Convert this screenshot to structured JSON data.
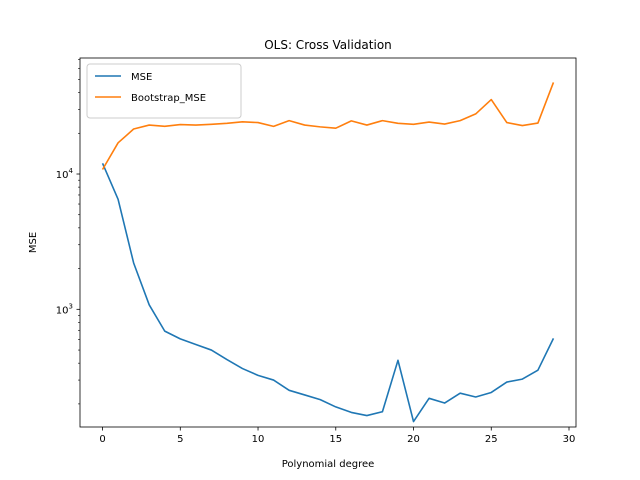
{
  "chart_data": {
    "type": "line",
    "title": "OLS: Cross Validation",
    "xlabel": "Polynomial degree",
    "ylabel": "MSE",
    "xlim": [
      -1.45,
      30.45
    ],
    "ylim": [
      135,
      72000
    ],
    "yscale": "log",
    "grid": false,
    "legend_position": "top-left",
    "x_ticks": [
      0,
      5,
      10,
      15,
      20,
      25,
      30
    ],
    "y_ticks": [
      {
        "value": 1000,
        "base": "10",
        "exp": "3"
      },
      {
        "value": 10000,
        "base": "10",
        "exp": "4"
      }
    ],
    "x": [
      0,
      1,
      2,
      3,
      4,
      5,
      6,
      7,
      8,
      9,
      10,
      11,
      12,
      13,
      14,
      15,
      16,
      17,
      18,
      19,
      20,
      21,
      22,
      23,
      24,
      25,
      26,
      27,
      28,
      29
    ],
    "series": [
      {
        "name": "MSE",
        "color": "#1f77b4",
        "values": [
          12000,
          6500,
          2200,
          1080,
          690,
          605,
          550,
          500,
          425,
          365,
          325,
          300,
          252,
          233,
          215,
          190,
          173,
          164,
          175,
          420,
          148,
          220,
          203,
          240,
          225,
          243,
          290,
          305,
          355,
          610
        ]
      },
      {
        "name": "Bootstrap_MSE",
        "color": "#ff7f0e",
        "values": [
          10800,
          17000,
          21500,
          23000,
          22500,
          23200,
          23000,
          23300,
          23700,
          24300,
          24000,
          22500,
          24800,
          23000,
          22300,
          21800,
          24700,
          23000,
          24800,
          23700,
          23300,
          24200,
          23400,
          24800,
          27800,
          35500,
          24000,
          22800,
          23800,
          47500
        ]
      }
    ]
  }
}
